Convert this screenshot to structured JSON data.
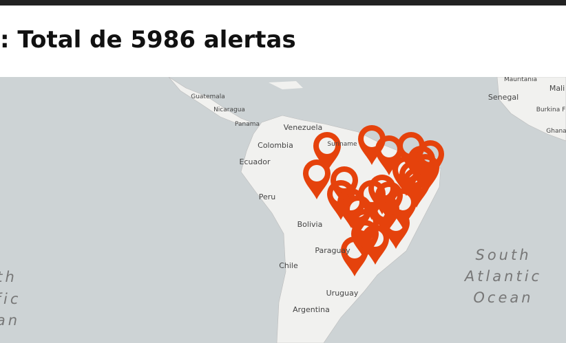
{
  "header": {
    "title": ": Total de 5986 alertas"
  },
  "map": {
    "labels": [
      "Mauritania",
      "Mali",
      "Senegal",
      "Burkina F",
      "Ghana",
      "Guatemala",
      "Nicaragua",
      "Panama",
      "Venezuela",
      "Suriname",
      "Colombia",
      "Ecuador",
      "Peru",
      "Bolivia",
      "Paraguay",
      "Chile",
      "Uruguay",
      "Argentina",
      "South",
      "Atlantic",
      "Ocean",
      "th",
      "fic",
      "an"
    ]
  }
}
